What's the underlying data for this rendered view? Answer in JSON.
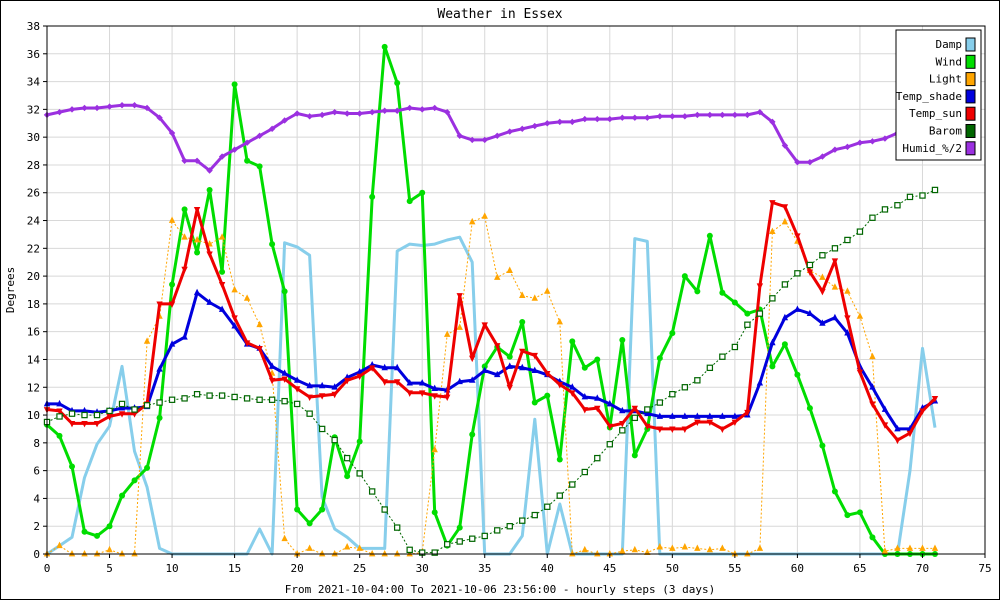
{
  "chart_data": {
    "type": "line",
    "title": "Weather in Essex",
    "xlabel": "From 2021-10-04:00 To 2021-10-06 23:56:00 - hourly steps (3 days)",
    "ylabel": "Degrees",
    "xlim": [
      0,
      75
    ],
    "ylim": [
      0,
      38
    ],
    "xticks": [
      "0",
      "5",
      "10",
      "15",
      "20",
      "25",
      "30",
      "35",
      "40",
      "45",
      "50",
      "55",
      "60",
      "65",
      "70",
      "75"
    ],
    "yticks": [
      "0",
      "2",
      "4",
      "6",
      "8",
      "10",
      "12",
      "14",
      "16",
      "18",
      "20",
      "22",
      "24",
      "26",
      "28",
      "30",
      "32",
      "34",
      "36",
      "38"
    ],
    "grid": true,
    "legend_position": "top-right",
    "series": [
      {
        "name": "Damp",
        "color": "#87ceeb",
        "marker": "none",
        "width": 3,
        "dash": "",
        "values": [
          0,
          0.6,
          1.2,
          5.5,
          7.9,
          9.2,
          13.5,
          7.4,
          4.8,
          0.4,
          0,
          0,
          0,
          0,
          0,
          0,
          0,
          1.8,
          0,
          22.4,
          22.1,
          21.5,
          4.1,
          1.8,
          1.2,
          0.4,
          0.4,
          0.4,
          21.8,
          22.3,
          22.2,
          22.3,
          22.6,
          22.8,
          21,
          0,
          0,
          0,
          1.3,
          9.7,
          0,
          3.6,
          0,
          0,
          0,
          0,
          0,
          22.7,
          22.5,
          0,
          0,
          0,
          0,
          0,
          0,
          0,
          0,
          0,
          0,
          0,
          0,
          0,
          0,
          0,
          0,
          0,
          0,
          0,
          0,
          6,
          14.8,
          9.1
        ]
      },
      {
        "name": "Wind",
        "color": "#00dd00",
        "marker": "circle",
        "width": 3,
        "dash": "",
        "values": [
          9.3,
          8.5,
          6.3,
          1.6,
          1.3,
          2,
          4.2,
          5.3,
          6.2,
          9.8,
          19.4,
          24.8,
          21.7,
          26.2,
          20.3,
          33.8,
          28.3,
          27.9,
          22.3,
          18.9,
          3.2,
          2.2,
          3.2,
          8.4,
          5.6,
          8.1,
          25.7,
          36.5,
          33.9,
          25.4,
          26,
          3,
          0.6,
          1.9,
          8.6,
          13.5,
          14.9,
          14.2,
          16.7,
          10.9,
          11.4,
          6.8,
          15.3,
          13.4,
          14,
          9.1,
          15.4,
          7.1,
          9,
          14.1,
          15.9,
          20,
          18.9,
          22.9,
          18.8,
          18.1,
          17.3,
          17.6,
          13.5,
          15.1,
          12.9,
          10.5,
          7.8,
          4.5,
          2.8,
          3,
          1.2,
          0,
          0,
          0,
          0,
          0
        ]
      },
      {
        "name": "Light",
        "color": "#ffa500",
        "marker": "triangle-up",
        "width": 1,
        "dash": "2,2",
        "values": [
          0,
          0.6,
          0,
          0,
          0,
          0.3,
          0,
          0,
          15.3,
          17.1,
          24,
          22.8,
          22.6,
          22.3,
          22.8,
          19,
          18.4,
          16.5,
          13,
          1.1,
          0,
          0.4,
          0,
          0,
          0.5,
          0.4,
          0,
          0,
          0,
          0,
          0.1,
          7.5,
          15.8,
          16.3,
          23.9,
          24.3,
          19.9,
          20.4,
          18.6,
          18.4,
          18.9,
          16.7,
          0,
          0.3,
          0,
          0,
          0.2,
          0.3,
          0.1,
          0.5,
          0.4,
          0.5,
          0.4,
          0.3,
          0.4,
          0,
          0,
          0.4,
          23.2,
          23.9,
          22.5,
          20.4,
          19.9,
          19.2,
          18.9,
          17.1,
          14.2,
          0.2,
          0.4,
          0.4,
          0.4,
          0.4
        ]
      },
      {
        "name": "Temp_shade",
        "color": "#0000dd",
        "marker": "triangle-up",
        "width": 3,
        "dash": "",
        "values": [
          10.8,
          10.8,
          10.3,
          10.3,
          10.2,
          10.3,
          10.5,
          10.5,
          10.6,
          13.3,
          15.1,
          15.6,
          18.8,
          18.1,
          17.6,
          16.4,
          15.1,
          14.8,
          13.5,
          13,
          12.5,
          12.1,
          12.1,
          12,
          12.7,
          13.1,
          13.6,
          13.4,
          13.4,
          12.3,
          12.3,
          11.9,
          11.8,
          12.4,
          12.5,
          13.2,
          12.9,
          13.5,
          13.4,
          13.2,
          12.9,
          12.4,
          12,
          11.3,
          11.2,
          10.8,
          10.3,
          10.3,
          10.1,
          9.9,
          9.9,
          9.9,
          9.9,
          9.9,
          9.9,
          9.9,
          10,
          12.3,
          15.2,
          17,
          17.6,
          17.3,
          16.6,
          17,
          15.9,
          13.5,
          12,
          10.4,
          9,
          9,
          10.5,
          11
        ]
      },
      {
        "name": "Temp_sun",
        "color": "#ee0000",
        "marker": "triangle-down",
        "width": 3,
        "dash": "",
        "values": [
          10.4,
          10.3,
          9.4,
          9.4,
          9.4,
          9.9,
          10.1,
          10.1,
          10.8,
          18,
          18,
          20.5,
          24.8,
          21.6,
          19.4,
          17,
          15.2,
          14.8,
          12.5,
          12.6,
          11.9,
          11.3,
          11.4,
          11.5,
          12.5,
          12.8,
          13.4,
          12.4,
          12.4,
          11.6,
          11.6,
          11.4,
          11.3,
          18.6,
          14.1,
          16.5,
          15,
          12,
          14.6,
          14.3,
          13,
          12.2,
          11.6,
          10.4,
          10.5,
          9.2,
          9.4,
          10.5,
          9.2,
          9,
          9,
          9,
          9.5,
          9.5,
          9,
          9.5,
          10.2,
          19.3,
          25.3,
          25,
          22.9,
          20.3,
          18.9,
          21.1,
          17,
          13.1,
          10.8,
          9.3,
          8.2,
          8.7,
          10.3,
          11.2
        ]
      },
      {
        "name": "Barom",
        "color": "#006600",
        "marker": "square-open",
        "width": 1,
        "dash": "2,2",
        "values": [
          9.5,
          9.9,
          10.1,
          10,
          10,
          10.3,
          10.8,
          10.4,
          10.7,
          10.9,
          11.1,
          11.2,
          11.5,
          11.4,
          11.4,
          11.3,
          11.2,
          11.1,
          11.1,
          11,
          10.8,
          10.1,
          9,
          8.2,
          6.9,
          5.8,
          4.5,
          3.2,
          1.9,
          0.3,
          0.1,
          0.1,
          0.7,
          0.9,
          1.1,
          1.3,
          1.7,
          2,
          2.4,
          2.8,
          3.4,
          4.2,
          5,
          5.9,
          6.9,
          7.9,
          8.9,
          9.8,
          10.4,
          10.9,
          11.5,
          12,
          12.5,
          13.4,
          14.2,
          14.9,
          16.5,
          17.3,
          18.4,
          19.4,
          20.2,
          20.8,
          21.5,
          22,
          22.6,
          23.2,
          24.2,
          24.8,
          25.1,
          25.7,
          25.8,
          26.2
        ]
      },
      {
        "name": "Humid_%/2",
        "color": "#9b30e0",
        "marker": "diamond",
        "width": 3,
        "dash": "",
        "values": [
          31.6,
          31.8,
          32,
          32.1,
          32.1,
          32.2,
          32.3,
          32.3,
          32.1,
          31.4,
          30.3,
          28.3,
          28.3,
          27.6,
          28.6,
          29.1,
          29.6,
          30.1,
          30.6,
          31.2,
          31.7,
          31.5,
          31.6,
          31.8,
          31.7,
          31.7,
          31.8,
          31.9,
          31.9,
          32.1,
          32,
          32.1,
          31.8,
          30.1,
          29.8,
          29.8,
          30.1,
          30.4,
          30.6,
          30.8,
          31,
          31.1,
          31.1,
          31.3,
          31.3,
          31.3,
          31.4,
          31.4,
          31.4,
          31.5,
          31.5,
          31.5,
          31.6,
          31.6,
          31.6,
          31.6,
          31.6,
          31.8,
          31.1,
          29.4,
          28.2,
          28.2,
          28.6,
          29.1,
          29.3,
          29.6,
          29.7,
          29.9,
          30.3,
          30.6,
          30.6,
          30.6
        ]
      }
    ]
  }
}
